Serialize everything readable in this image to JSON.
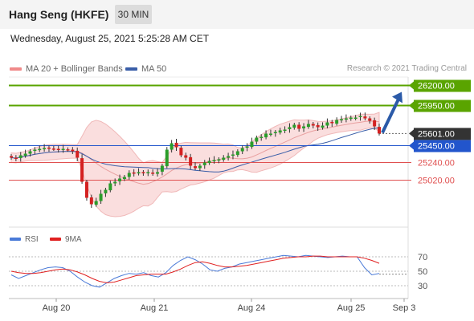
{
  "header": {
    "title": "Hang Seng (HKFE)",
    "interval": "30 MIN",
    "datetime": "Wednesday, August 25, 2021 5:25:28 AM CET"
  },
  "legend": {
    "bb_label": "MA 20 + Bollinger Bands",
    "ma50_label": "MA 50",
    "credit": "Research © 2021 Trading Central"
  },
  "rsi_legend": {
    "rsi_label": "RSI",
    "ma_label": "9MA"
  },
  "colors": {
    "resistance": "#5aa400",
    "support": "#2255cc",
    "minor": "#e05050",
    "bb": "#f2a0a0",
    "ma50": "#3a5ea8",
    "rsi": "#4a7ad8",
    "rsi_ma": "#e02020",
    "up": "#2a9d2a",
    "down": "#d42020"
  },
  "chart_data": [
    {
      "type": "candlestick",
      "title": "Hang Seng (HKFE)",
      "x_ticks": [
        "Aug 20",
        "Aug 21",
        "Aug 24",
        "Aug 25",
        "Sep 3"
      ],
      "ylim": [
        24650,
        26250
      ],
      "last_price": 25601,
      "price_series": [
        25300,
        25290,
        25330,
        25350,
        25380,
        25400,
        25410,
        25420,
        25420,
        25410,
        25400,
        25410,
        25400,
        25380,
        25300,
        25000,
        24800,
        24720,
        24760,
        24850,
        24900,
        24980,
        25000,
        25040,
        25060,
        25110,
        25110,
        25120,
        25110,
        25120,
        25100,
        25120,
        25200,
        25400,
        25480,
        25430,
        25330,
        25300,
        25200,
        25170,
        25200,
        25240,
        25260,
        25270,
        25280,
        25300,
        25320,
        25340,
        25380,
        25420,
        25440,
        25500,
        25550,
        25560,
        25600,
        25600,
        25620,
        25640,
        25650,
        25680,
        25710,
        25660,
        25690,
        25720,
        25700,
        25680,
        25700,
        25740,
        25730,
        25770,
        25780,
        25790,
        25800,
        25800,
        25820,
        25790,
        25760,
        25690,
        25601
      ],
      "levels": [
        {
          "value": 26200,
          "label": "26200.00",
          "kind": "resistance"
        },
        {
          "value": 25950,
          "label": "25950.00",
          "kind": "resistance"
        },
        {
          "value": 25601,
          "label": "25601.00",
          "kind": "last"
        },
        {
          "value": 25450,
          "label": "25450.00",
          "kind": "support"
        },
        {
          "value": 25240,
          "label": "25240.00",
          "kind": "minor"
        },
        {
          "value": 25020,
          "label": "25020.00",
          "kind": "minor"
        }
      ],
      "series": [
        {
          "name": "MA 20 + Bollinger Bands"
        },
        {
          "name": "MA 50"
        }
      ]
    },
    {
      "type": "line",
      "ylim": [
        20,
        80
      ],
      "y_ticks": [
        70,
        50,
        30
      ],
      "series": [
        {
          "name": "RSI",
          "values": [
            45,
            40,
            44,
            48,
            52,
            55,
            56,
            55,
            50,
            42,
            35,
            30,
            28,
            34,
            40,
            44,
            47,
            46,
            48,
            44,
            42,
            48,
            58,
            65,
            70,
            66,
            60,
            52,
            50,
            54,
            56,
            60,
            62,
            64,
            66,
            68,
            70,
            72,
            71,
            70,
            72,
            71,
            70,
            69,
            70,
            71,
            70,
            70,
            55,
            45,
            47
          ]
        },
        {
          "name": "9MA",
          "values": [
            50,
            48,
            47,
            47,
            48,
            50,
            52,
            53,
            52,
            49,
            45,
            40,
            36,
            34,
            35,
            38,
            41,
            44,
            45,
            46,
            46,
            46,
            49,
            53,
            58,
            62,
            63,
            61,
            58,
            56,
            56,
            57,
            58,
            60,
            62,
            64,
            66,
            68,
            69,
            70,
            70,
            71,
            71,
            70,
            70,
            70,
            70,
            70,
            68,
            65,
            61
          ]
        }
      ]
    }
  ]
}
